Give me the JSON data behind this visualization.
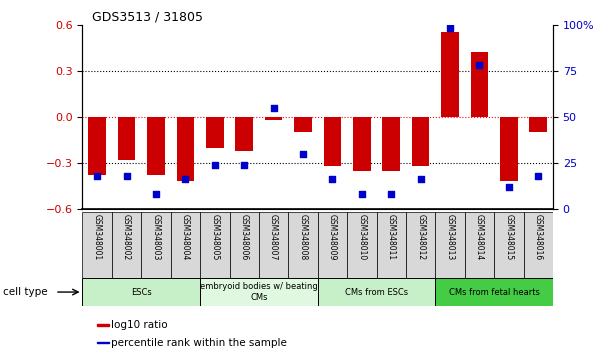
{
  "title": "GDS3513 / 31805",
  "samples": [
    "GSM348001",
    "GSM348002",
    "GSM348003",
    "GSM348004",
    "GSM348005",
    "GSM348006",
    "GSM348007",
    "GSM348008",
    "GSM348009",
    "GSM348010",
    "GSM348011",
    "GSM348012",
    "GSM348013",
    "GSM348014",
    "GSM348015",
    "GSM348016"
  ],
  "log10_ratio": [
    -0.38,
    -0.28,
    -0.38,
    -0.42,
    -0.2,
    -0.22,
    -0.02,
    -0.1,
    -0.32,
    -0.35,
    -0.35,
    -0.32,
    0.55,
    0.42,
    -0.42,
    -0.1
  ],
  "percentile_rank": [
    18,
    18,
    8,
    16,
    24,
    24,
    55,
    30,
    16,
    8,
    8,
    16,
    98,
    78,
    12,
    18
  ],
  "cell_type_groups": [
    {
      "label": "ESCs",
      "start": 0,
      "end": 3,
      "color": "#c8f0c8"
    },
    {
      "label": "embryoid bodies w/ beating\nCMs",
      "start": 4,
      "end": 7,
      "color": "#e0f8e0"
    },
    {
      "label": "CMs from ESCs",
      "start": 8,
      "end": 11,
      "color": "#c8f0c8"
    },
    {
      "label": "CMs from fetal hearts",
      "start": 12,
      "end": 15,
      "color": "#44cc44"
    }
  ],
  "bar_color": "#cc0000",
  "dot_color": "#0000cc",
  "ylim_left": [
    -0.6,
    0.6
  ],
  "ylim_right": [
    0,
    100
  ],
  "yticks_left": [
    -0.6,
    -0.3,
    0,
    0.3,
    0.6
  ],
  "yticks_right": [
    0,
    25,
    50,
    75,
    100
  ],
  "ytick_labels_right": [
    "0",
    "25",
    "50",
    "75",
    "100%"
  ],
  "hline_dotted": [
    0.3,
    -0.3
  ],
  "hline_red_dotted": 0,
  "legend_items": [
    {
      "label": "log10 ratio",
      "color": "#cc0000"
    },
    {
      "label": "percentile rank within the sample",
      "color": "#0000cc"
    }
  ],
  "cell_type_label": "cell type",
  "tick_label_color_left": "#cc0000",
  "tick_label_color_right": "#0000cc",
  "sample_box_color": "#d8d8d8"
}
